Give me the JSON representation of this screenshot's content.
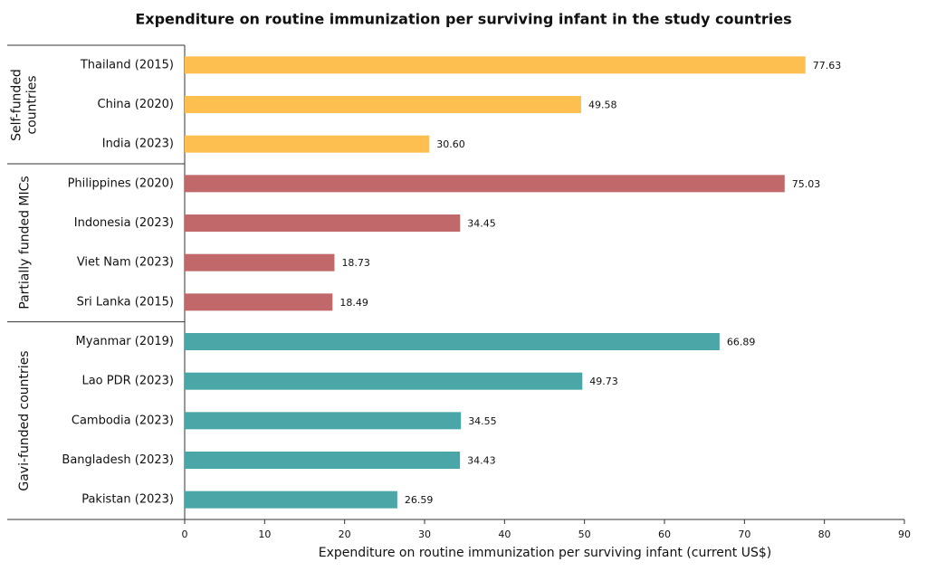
{
  "chart_data": {
    "type": "bar",
    "orientation": "horizontal",
    "title": "Expenditure on routine immunization per surviving infant in the study countries",
    "xlabel": "Expenditure on routine immunization per surviving infant (current US$)",
    "xlim": [
      0,
      90
    ],
    "xticks": [
      0,
      10,
      20,
      30,
      40,
      50,
      60,
      70,
      80,
      90
    ],
    "groups": [
      {
        "name": "Self-funded countries",
        "color": "#fdbf4f",
        "categories": [
          "Thailand (2015)",
          "China (2020)",
          "India (2023)"
        ],
        "values": [
          77.63,
          49.58,
          30.6
        ],
        "value_labels": [
          "77.63",
          "49.58",
          "30.60"
        ]
      },
      {
        "name": "Partially funded MICs",
        "color": "#c0686a",
        "categories": [
          "Philippines (2020)",
          "Indonesia (2023)",
          "Viet Nam (2023)",
          "Sri Lanka (2015)"
        ],
        "values": [
          75.03,
          34.45,
          18.73,
          18.49
        ],
        "value_labels": [
          "75.03",
          "34.45",
          "18.73",
          "18.49"
        ]
      },
      {
        "name": "Gavi-funded countries",
        "color": "#4ba6a7",
        "categories": [
          "Myanmar (2019)",
          "Lao PDR (2023)",
          "Cambodia (2023)",
          "Bangladesh (2023)",
          "Pakistan (2023)"
        ],
        "values": [
          66.89,
          49.73,
          34.55,
          34.43,
          26.59
        ],
        "value_labels": [
          "66.89",
          "49.73",
          "34.55",
          "34.43",
          "26.59"
        ]
      }
    ]
  }
}
